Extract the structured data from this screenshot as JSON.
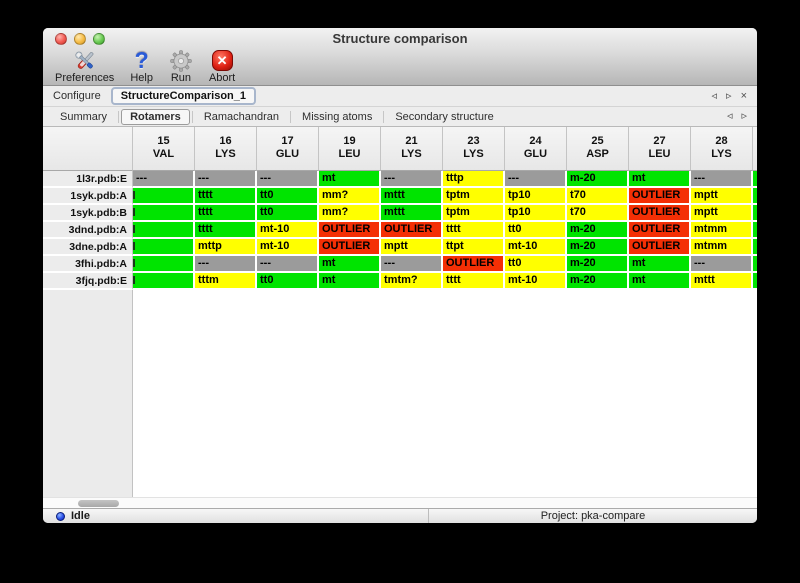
{
  "window": {
    "title": "Structure comparison"
  },
  "toolbar": {
    "items": [
      {
        "label": "Preferences",
        "icon": "tools-icon"
      },
      {
        "label": "Help",
        "icon": "help-icon",
        "glyph": "?"
      },
      {
        "label": "Run",
        "icon": "gear-icon"
      },
      {
        "label": "Abort",
        "icon": "abort-icon",
        "glyph": "✕"
      }
    ]
  },
  "configure": {
    "label": "Configure",
    "tab": "StructureComparison_1",
    "nav": {
      "prev": "◃",
      "next": "▹",
      "close": "×"
    }
  },
  "tabs": {
    "items": [
      "Summary",
      "Rotamers",
      "Ramachandran",
      "Missing atoms",
      "Secondary structure"
    ],
    "selected": "Rotamers",
    "nav": {
      "prev": "◃",
      "next": "▹"
    }
  },
  "colors": {
    "green": "#00e400",
    "yellow": "#ffff00",
    "red": "#f42f05",
    "gray": "#9b9b9b"
  },
  "table": {
    "columns": [
      {
        "number": "15",
        "residue": "VAL"
      },
      {
        "number": "16",
        "residue": "LYS"
      },
      {
        "number": "17",
        "residue": "GLU"
      },
      {
        "number": "19",
        "residue": "LEU"
      },
      {
        "number": "21",
        "residue": "LYS"
      },
      {
        "number": "23",
        "residue": "LYS"
      },
      {
        "number": "24",
        "residue": "GLU"
      },
      {
        "number": "25",
        "residue": "ASP"
      },
      {
        "number": "27",
        "residue": "LEU"
      },
      {
        "number": "28",
        "residue": "LYS"
      }
    ],
    "rows": [
      {
        "label": "1l3r.pdb:E",
        "cells": [
          {
            "text": "---",
            "color": "gray"
          },
          {
            "text": "---",
            "color": "gray"
          },
          {
            "text": "---",
            "color": "gray"
          },
          {
            "text": "mt",
            "color": "green"
          },
          {
            "text": "---",
            "color": "gray"
          },
          {
            "text": "tttp",
            "color": "yellow"
          },
          {
            "text": "---",
            "color": "gray"
          },
          {
            "text": "m-20",
            "color": "green"
          },
          {
            "text": "mt",
            "color": "green"
          },
          {
            "text": "---",
            "color": "gray"
          }
        ]
      },
      {
        "label": "1syk.pdb:A",
        "cells": [
          {
            "text": "",
            "color": "green",
            "clip": true
          },
          {
            "text": "tttt",
            "color": "green"
          },
          {
            "text": "tt0",
            "color": "green"
          },
          {
            "text": "mm?",
            "color": "yellow"
          },
          {
            "text": "mttt",
            "color": "green"
          },
          {
            "text": "tptm",
            "color": "yellow"
          },
          {
            "text": "tp10",
            "color": "yellow"
          },
          {
            "text": "t70",
            "color": "yellow"
          },
          {
            "text": "OUTLIER",
            "color": "red"
          },
          {
            "text": "mptt",
            "color": "yellow"
          }
        ]
      },
      {
        "label": "1syk.pdb:B",
        "cells": [
          {
            "text": "",
            "color": "green",
            "clip": true
          },
          {
            "text": "tttt",
            "color": "green"
          },
          {
            "text": "tt0",
            "color": "green"
          },
          {
            "text": "mm?",
            "color": "yellow"
          },
          {
            "text": "mttt",
            "color": "green"
          },
          {
            "text": "tptm",
            "color": "yellow"
          },
          {
            "text": "tp10",
            "color": "yellow"
          },
          {
            "text": "t70",
            "color": "yellow"
          },
          {
            "text": "OUTLIER",
            "color": "red"
          },
          {
            "text": "mptt",
            "color": "yellow"
          }
        ]
      },
      {
        "label": "3dnd.pdb:A",
        "cells": [
          {
            "text": "",
            "color": "green",
            "clip": true
          },
          {
            "text": "tttt",
            "color": "green"
          },
          {
            "text": "mt-10",
            "color": "yellow"
          },
          {
            "text": "OUTLIER",
            "color": "red"
          },
          {
            "text": "OUTLIER",
            "color": "red"
          },
          {
            "text": "tttt",
            "color": "yellow"
          },
          {
            "text": "tt0",
            "color": "yellow"
          },
          {
            "text": "m-20",
            "color": "green"
          },
          {
            "text": "OUTLIER",
            "color": "red"
          },
          {
            "text": "mtmm",
            "color": "yellow"
          }
        ]
      },
      {
        "label": "3dne.pdb:A",
        "cells": [
          {
            "text": "",
            "color": "green",
            "clip": true
          },
          {
            "text": "mttp",
            "color": "yellow"
          },
          {
            "text": "mt-10",
            "color": "yellow"
          },
          {
            "text": "OUTLIER",
            "color": "red"
          },
          {
            "text": "mptt",
            "color": "yellow"
          },
          {
            "text": "ttpt",
            "color": "yellow"
          },
          {
            "text": "mt-10",
            "color": "yellow"
          },
          {
            "text": "m-20",
            "color": "green"
          },
          {
            "text": "OUTLIER",
            "color": "red"
          },
          {
            "text": "mtmm",
            "color": "yellow"
          }
        ]
      },
      {
        "label": "3fhi.pdb:A",
        "cells": [
          {
            "text": "",
            "color": "green",
            "clip": true
          },
          {
            "text": "---",
            "color": "gray"
          },
          {
            "text": "---",
            "color": "gray"
          },
          {
            "text": "mt",
            "color": "green"
          },
          {
            "text": "---",
            "color": "gray"
          },
          {
            "text": "OUTLIER",
            "color": "red"
          },
          {
            "text": "tt0",
            "color": "yellow"
          },
          {
            "text": "m-20",
            "color": "green"
          },
          {
            "text": "mt",
            "color": "green"
          },
          {
            "text": "---",
            "color": "gray"
          }
        ]
      },
      {
        "label": "3fjq.pdb:E",
        "cells": [
          {
            "text": "",
            "color": "green",
            "clip": true
          },
          {
            "text": "tttm",
            "color": "yellow"
          },
          {
            "text": "tt0",
            "color": "green"
          },
          {
            "text": "mt",
            "color": "green"
          },
          {
            "text": "tmtm?",
            "color": "yellow"
          },
          {
            "text": "tttt",
            "color": "yellow"
          },
          {
            "text": "mt-10",
            "color": "yellow"
          },
          {
            "text": "m-20",
            "color": "green"
          },
          {
            "text": "mt",
            "color": "green"
          },
          {
            "text": "mttt",
            "color": "yellow"
          }
        ]
      }
    ],
    "edge_colors": [
      "green",
      "green",
      "green",
      "green",
      "green",
      "green",
      "green"
    ]
  },
  "status": {
    "state": "Idle",
    "project": "Project: pka-compare"
  }
}
